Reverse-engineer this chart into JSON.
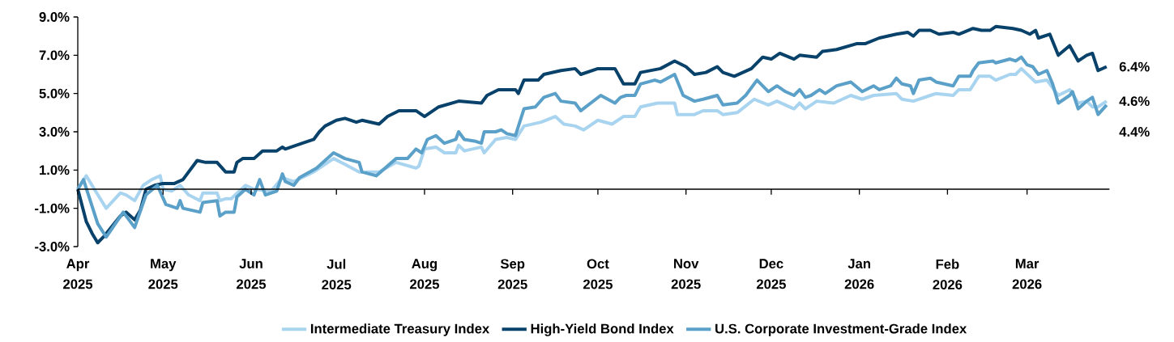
{
  "chart_data": {
    "type": "line",
    "xlim": [
      "2025-04-01",
      "2026-03-30"
    ],
    "ylim": [
      -3,
      9
    ],
    "xticks": [
      {
        "value": "2025-04-01",
        "label": "Apr 2025"
      },
      {
        "value": "2025-05-01",
        "label": "May 2025"
      },
      {
        "value": "2025-06-01",
        "label": "Jun 2025"
      },
      {
        "value": "2025-07-01",
        "label": "Jul 2025"
      },
      {
        "value": "2025-08-01",
        "label": "Aug 2025"
      },
      {
        "value": "2025-09-01",
        "label": "Sep 2025"
      },
      {
        "value": "2025-10-01",
        "label": "Oct 2025"
      },
      {
        "value": "2025-11-01",
        "label": "Nov 2025"
      },
      {
        "value": "2025-12-01",
        "label": "Dec 2025"
      },
      {
        "value": "2026-01-01",
        "label": "Jan 2026"
      },
      {
        "value": "2026-02-01",
        "label": "Feb 2026"
      },
      {
        "value": "2026-03-01",
        "label": "Mar 2026"
      }
    ],
    "yticks": [
      {
        "value": -3,
        "label": "-3.0%"
      },
      {
        "value": -1,
        "label": "-1.0%"
      },
      {
        "value": 1,
        "label": "1.0%"
      },
      {
        "value": 3,
        "label": "3.0%"
      },
      {
        "value": 5,
        "label": "5.0%"
      },
      {
        "value": 7,
        "label": "7.0%"
      },
      {
        "value": 9,
        "label": "9.0%"
      }
    ],
    "legend": "bottom",
    "annotations": [
      {
        "text": "6.4%",
        "x": "2026-03-29",
        "y": 6.4
      },
      {
        "text": "4.6%",
        "x": "2026-03-29",
        "y": 4.6
      },
      {
        "text": "4.4%",
        "x": "2026-03-29",
        "y": 4.4
      }
    ],
    "series": [
      {
        "name": "Intermediate Treasury Index",
        "color": "#a9d4f0",
        "x": [
          "2025-04-01",
          "2025-04-04",
          "2025-04-06",
          "2025-04-11",
          "2025-04-16",
          "2025-04-18",
          "2025-04-21",
          "2025-04-24",
          "2025-04-27",
          "2025-04-30",
          "2025-05-01",
          "2025-05-04",
          "2025-05-07",
          "2025-05-10",
          "2025-05-14",
          "2025-05-15",
          "2025-05-20",
          "2025-05-21",
          "2025-05-23",
          "2025-05-25",
          "2025-05-30",
          "2025-06-02",
          "2025-06-08",
          "2025-06-12",
          "2025-06-16",
          "2025-06-23",
          "2025-06-30",
          "2025-07-04",
          "2025-07-09",
          "2025-07-16",
          "2025-07-22",
          "2025-07-29",
          "2025-07-30",
          "2025-08-01",
          "2025-08-05",
          "2025-08-08",
          "2025-08-12",
          "2025-08-13",
          "2025-08-15",
          "2025-08-21",
          "2025-08-22",
          "2025-08-26",
          "2025-08-30",
          "2025-09-02",
          "2025-09-05",
          "2025-09-11",
          "2025-09-16",
          "2025-09-19",
          "2025-09-23",
          "2025-09-26",
          "2025-10-01",
          "2025-10-06",
          "2025-10-10",
          "2025-10-14",
          "2025-10-16",
          "2025-10-22",
          "2025-10-28",
          "2025-10-29",
          "2025-11-04",
          "2025-11-07",
          "2025-11-12",
          "2025-11-14",
          "2025-11-19",
          "2025-11-25",
          "2025-11-30",
          "2025-12-03",
          "2025-12-09",
          "2025-12-11",
          "2025-12-13",
          "2025-12-17",
          "2025-12-23",
          "2025-12-29",
          "2026-01-02",
          "2026-01-06",
          "2026-01-14",
          "2026-01-16",
          "2026-01-20",
          "2026-01-26",
          "2026-01-28",
          "2026-02-03",
          "2026-02-05",
          "2026-02-09",
          "2026-02-12",
          "2026-02-16",
          "2026-02-18",
          "2026-02-23",
          "2026-02-25",
          "2026-02-27",
          "2026-03-04",
          "2026-03-08",
          "2026-03-12",
          "2026-03-16",
          "2026-03-17",
          "2026-03-19",
          "2026-03-22",
          "2026-03-24",
          "2026-03-26",
          "2026-03-29"
        ],
        "values": [
          0.0,
          0.7,
          0.2,
          -1.0,
          -0.2,
          -0.3,
          -0.6,
          0.2,
          0.5,
          0.7,
          0.0,
          -0.1,
          0.2,
          -0.3,
          -0.6,
          -0.2,
          -0.2,
          -0.6,
          -0.5,
          -0.5,
          0.2,
          0.0,
          -0.1,
          0.6,
          0.4,
          0.9,
          1.6,
          1.3,
          0.9,
          0.9,
          1.4,
          1.1,
          1.2,
          2.1,
          2.2,
          1.9,
          1.9,
          2.3,
          2.0,
          2.2,
          1.9,
          2.6,
          2.7,
          2.6,
          3.3,
          3.5,
          3.8,
          3.4,
          3.3,
          3.1,
          3.6,
          3.4,
          3.8,
          3.8,
          4.3,
          4.5,
          4.5,
          3.9,
          3.9,
          4.1,
          4.1,
          3.9,
          4.0,
          4.7,
          4.4,
          4.6,
          4.2,
          4.5,
          4.2,
          4.6,
          4.5,
          4.9,
          4.7,
          4.9,
          5.0,
          4.7,
          4.6,
          4.9,
          5.0,
          4.9,
          5.2,
          5.2,
          5.9,
          5.9,
          5.7,
          6.0,
          6.0,
          6.3,
          5.6,
          5.7,
          4.9,
          5.2,
          5.0,
          4.5,
          4.6,
          4.3,
          4.3,
          4.6
        ]
      },
      {
        "name": "High-Yield Bond Index",
        "color": "#08426b",
        "x": [
          "2025-04-01",
          "2025-04-04",
          "2025-04-06",
          "2025-04-08",
          "2025-04-10",
          "2025-04-16",
          "2025-04-18",
          "2025-04-21",
          "2025-04-23",
          "2025-04-25",
          "2025-04-28",
          "2025-05-01",
          "2025-05-05",
          "2025-05-08",
          "2025-05-13",
          "2025-05-16",
          "2025-05-20",
          "2025-05-23",
          "2025-05-26",
          "2025-05-27",
          "2025-05-29",
          "2025-06-02",
          "2025-06-05",
          "2025-06-10",
          "2025-06-12",
          "2025-06-13",
          "2025-06-19",
          "2025-06-23",
          "2025-06-25",
          "2025-06-27",
          "2025-07-01",
          "2025-07-04",
          "2025-07-08",
          "2025-07-10",
          "2025-07-16",
          "2025-07-19",
          "2025-07-23",
          "2025-07-29",
          "2025-08-01",
          "2025-08-06",
          "2025-08-13",
          "2025-08-21",
          "2025-08-23",
          "2025-08-27",
          "2025-09-02",
          "2025-09-03",
          "2025-09-05",
          "2025-09-10",
          "2025-09-12",
          "2025-09-18",
          "2025-09-23",
          "2025-09-25",
          "2025-10-01",
          "2025-10-07",
          "2025-10-10",
          "2025-10-14",
          "2025-10-16",
          "2025-10-23",
          "2025-10-28",
          "2025-11-01",
          "2025-11-04",
          "2025-11-08",
          "2025-11-12",
          "2025-11-14",
          "2025-11-18",
          "2025-11-24",
          "2025-11-28",
          "2025-12-01",
          "2025-12-04",
          "2025-12-09",
          "2025-12-11",
          "2025-12-17",
          "2025-12-19",
          "2025-12-24",
          "2025-12-31",
          "2026-01-03",
          "2026-01-08",
          "2026-01-14",
          "2026-01-18",
          "2026-01-20",
          "2026-01-22",
          "2026-01-26",
          "2026-01-29",
          "2026-02-03",
          "2026-02-05",
          "2026-02-10",
          "2026-02-13",
          "2026-02-16",
          "2026-02-18",
          "2026-02-24",
          "2026-02-27",
          "2026-03-02",
          "2026-03-04",
          "2026-03-05",
          "2026-03-09",
          "2026-03-12",
          "2026-03-16",
          "2026-03-19",
          "2026-03-22",
          "2026-03-24",
          "2026-03-26",
          "2026-03-29"
        ],
        "values": [
          0.0,
          -1.7,
          -2.3,
          -2.8,
          -2.5,
          -1.4,
          -1.2,
          -1.6,
          -1.1,
          0.0,
          0.2,
          0.3,
          0.3,
          0.5,
          1.5,
          1.4,
          1.4,
          0.9,
          0.9,
          1.4,
          1.6,
          1.6,
          2.0,
          2.0,
          2.2,
          2.1,
          2.4,
          2.6,
          3.0,
          3.3,
          3.6,
          3.7,
          3.5,
          3.6,
          3.4,
          3.8,
          4.1,
          4.1,
          3.8,
          4.3,
          4.6,
          4.5,
          4.9,
          5.2,
          5.2,
          5.0,
          5.7,
          5.7,
          6.0,
          6.2,
          6.3,
          6.0,
          6.3,
          6.3,
          5.5,
          5.5,
          6.1,
          6.3,
          6.7,
          6.4,
          6.0,
          6.1,
          6.4,
          6.1,
          5.9,
          6.3,
          6.9,
          6.8,
          7.1,
          6.8,
          7.0,
          6.9,
          7.2,
          7.3,
          7.6,
          7.6,
          7.9,
          8.1,
          8.2,
          8.0,
          8.3,
          8.3,
          8.1,
          8.2,
          8.1,
          8.4,
          8.3,
          8.3,
          8.5,
          8.4,
          8.3,
          8.1,
          8.3,
          7.9,
          8.1,
          7.0,
          7.5,
          6.7,
          7.0,
          7.1,
          6.2,
          6.4
        ]
      },
      {
        "name": "U.S. Corporate Investment-Grade Index",
        "color": "#5aa0c8",
        "x": [
          "2025-04-01",
          "2025-04-03",
          "2025-04-08",
          "2025-04-11",
          "2025-04-17",
          "2025-04-21",
          "2025-04-25",
          "2025-04-29",
          "2025-05-02",
          "2025-05-06",
          "2025-05-07",
          "2025-05-08",
          "2025-05-14",
          "2025-05-15",
          "2025-05-20",
          "2025-05-21",
          "2025-05-23",
          "2025-05-26",
          "2025-05-27",
          "2025-05-30",
          "2025-06-02",
          "2025-06-04",
          "2025-06-06",
          "2025-06-10",
          "2025-06-12",
          "2025-06-13",
          "2025-06-16",
          "2025-06-18",
          "2025-06-24",
          "2025-06-30",
          "2025-07-04",
          "2025-07-09",
          "2025-07-10",
          "2025-07-15",
          "2025-07-22",
          "2025-07-26",
          "2025-07-29",
          "2025-07-31",
          "2025-08-02",
          "2025-08-05",
          "2025-08-08",
          "2025-08-12",
          "2025-08-13",
          "2025-08-15",
          "2025-08-19",
          "2025-08-21",
          "2025-08-22",
          "2025-08-26",
          "2025-08-28",
          "2025-08-30",
          "2025-09-02",
          "2025-09-05",
          "2025-09-09",
          "2025-09-12",
          "2025-09-16",
          "2025-09-18",
          "2025-09-23",
          "2025-09-25",
          "2025-10-02",
          "2025-10-07",
          "2025-10-09",
          "2025-10-11",
          "2025-10-14",
          "2025-10-16",
          "2025-10-21",
          "2025-10-23",
          "2025-10-28",
          "2025-10-31",
          "2025-11-04",
          "2025-11-07",
          "2025-11-12",
          "2025-11-14",
          "2025-11-19",
          "2025-11-22",
          "2025-11-26",
          "2025-11-30",
          "2025-12-03",
          "2025-12-06",
          "2025-12-09",
          "2025-12-11",
          "2025-12-13",
          "2025-12-15",
          "2025-12-18",
          "2025-12-20",
          "2025-12-24",
          "2025-12-29",
          "2026-01-02",
          "2026-01-06",
          "2026-01-08",
          "2026-01-12",
          "2026-01-14",
          "2026-01-16",
          "2026-01-19",
          "2026-01-20",
          "2026-01-22",
          "2026-01-26",
          "2026-01-28",
          "2026-02-03",
          "2026-02-05",
          "2026-02-09",
          "2026-02-10",
          "2026-02-12",
          "2026-02-17",
          "2026-02-18",
          "2026-02-23",
          "2026-02-25",
          "2026-02-27",
          "2026-03-01",
          "2026-03-03",
          "2026-03-05",
          "2026-03-08",
          "2026-03-10",
          "2026-03-12",
          "2026-03-16",
          "2026-03-17",
          "2026-03-19",
          "2026-03-22",
          "2026-03-24",
          "2026-03-26",
          "2026-03-29"
        ],
        "values": [
          0.0,
          0.5,
          -1.8,
          -2.5,
          -1.2,
          -2.0,
          -0.3,
          0.2,
          -0.8,
          -1.0,
          -0.6,
          -1.0,
          -1.2,
          -0.7,
          -0.6,
          -1.4,
          -1.2,
          -1.2,
          -0.4,
          0.0,
          -0.3,
          0.5,
          -0.3,
          -0.1,
          0.8,
          0.4,
          0.2,
          0.6,
          1.1,
          1.9,
          1.6,
          1.4,
          0.9,
          0.7,
          1.6,
          1.6,
          2.1,
          1.9,
          2.6,
          2.8,
          2.4,
          2.6,
          3.0,
          2.6,
          2.5,
          2.4,
          3.0,
          3.0,
          3.1,
          2.9,
          2.8,
          4.2,
          4.3,
          4.8,
          5.0,
          4.6,
          4.5,
          4.1,
          4.9,
          4.5,
          4.8,
          4.9,
          4.9,
          5.5,
          5.7,
          5.6,
          6.0,
          4.9,
          4.6,
          4.7,
          4.9,
          4.4,
          4.5,
          4.9,
          5.7,
          5.1,
          5.4,
          5.1,
          4.9,
          5.2,
          4.8,
          4.9,
          5.2,
          5.0,
          5.4,
          5.6,
          5.1,
          5.4,
          5.2,
          5.4,
          5.8,
          5.5,
          5.4,
          5.0,
          5.7,
          5.8,
          5.6,
          5.4,
          5.9,
          5.9,
          6.2,
          6.6,
          6.7,
          6.6,
          6.8,
          6.7,
          6.9,
          6.5,
          6.4,
          6.0,
          6.2,
          5.5,
          4.5,
          4.9,
          5.1,
          4.2,
          4.6,
          4.8,
          3.9,
          4.4
        ]
      }
    ]
  }
}
